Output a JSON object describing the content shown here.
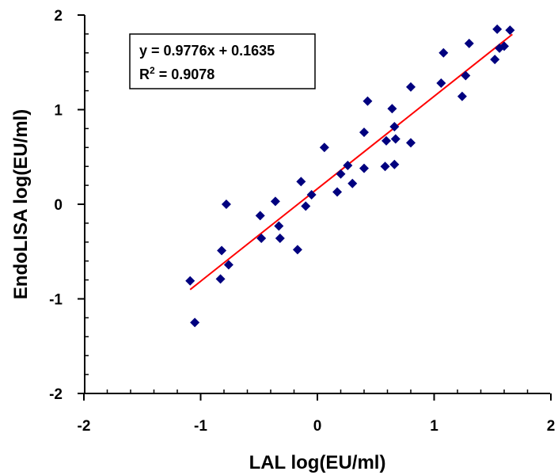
{
  "chart_data": {
    "type": "scatter",
    "xlabel": "LAL log(EU/ml)",
    "ylabel": "EndoLISA log(EU/ml)",
    "xlim": [
      -2,
      2
    ],
    "ylim": [
      -2,
      2
    ],
    "x_ticks": [
      -2,
      -1,
      0,
      1,
      2
    ],
    "y_ticks": [
      -2,
      -1,
      0,
      1,
      2
    ],
    "x_tick_labels": [
      "-2",
      "-1",
      "0",
      "1",
      "2"
    ],
    "y_tick_labels": [
      "-2",
      "-1",
      "0",
      "1",
      "2"
    ],
    "grid": false,
    "marker": "diamond",
    "marker_color": "#00007f",
    "trendline_color": "#ff0000",
    "equation": {
      "line1": "y = 0.9776x + 0.1635",
      "line2_prefix": "R",
      "line2_sup": "2",
      "line2_rest": " = 0.9078"
    },
    "trendline": {
      "slope": 0.9776,
      "intercept": 0.1635,
      "x_range": [
        -1.09,
        1.67
      ]
    },
    "points": [
      [
        -1.09,
        -0.81
      ],
      [
        -1.05,
        -1.25
      ],
      [
        -0.83,
        -0.79
      ],
      [
        -0.82,
        -0.49
      ],
      [
        -0.78,
        0.0
      ],
      [
        -0.76,
        -0.64
      ],
      [
        -0.49,
        -0.12
      ],
      [
        -0.48,
        -0.36
      ],
      [
        -0.36,
        0.03
      ],
      [
        -0.33,
        -0.23
      ],
      [
        -0.32,
        -0.36
      ],
      [
        -0.17,
        -0.48
      ],
      [
        -0.14,
        0.24
      ],
      [
        -0.1,
        -0.02
      ],
      [
        -0.05,
        0.1
      ],
      [
        0.06,
        0.6
      ],
      [
        0.17,
        0.13
      ],
      [
        0.2,
        0.32
      ],
      [
        0.26,
        0.41
      ],
      [
        0.3,
        0.22
      ],
      [
        0.4,
        0.38
      ],
      [
        0.4,
        0.76
      ],
      [
        0.43,
        1.09
      ],
      [
        0.58,
        0.4
      ],
      [
        0.59,
        0.67
      ],
      [
        0.64,
        1.01
      ],
      [
        0.66,
        0.42
      ],
      [
        0.66,
        0.82
      ],
      [
        0.67,
        0.69
      ],
      [
        0.8,
        0.65
      ],
      [
        0.8,
        1.24
      ],
      [
        1.06,
        1.28
      ],
      [
        1.08,
        1.6
      ],
      [
        1.24,
        1.14
      ],
      [
        1.27,
        1.36
      ],
      [
        1.3,
        1.7
      ],
      [
        1.52,
        1.53
      ],
      [
        1.54,
        1.85
      ],
      [
        1.56,
        1.65
      ],
      [
        1.6,
        1.67
      ],
      [
        1.65,
        1.84
      ]
    ]
  }
}
